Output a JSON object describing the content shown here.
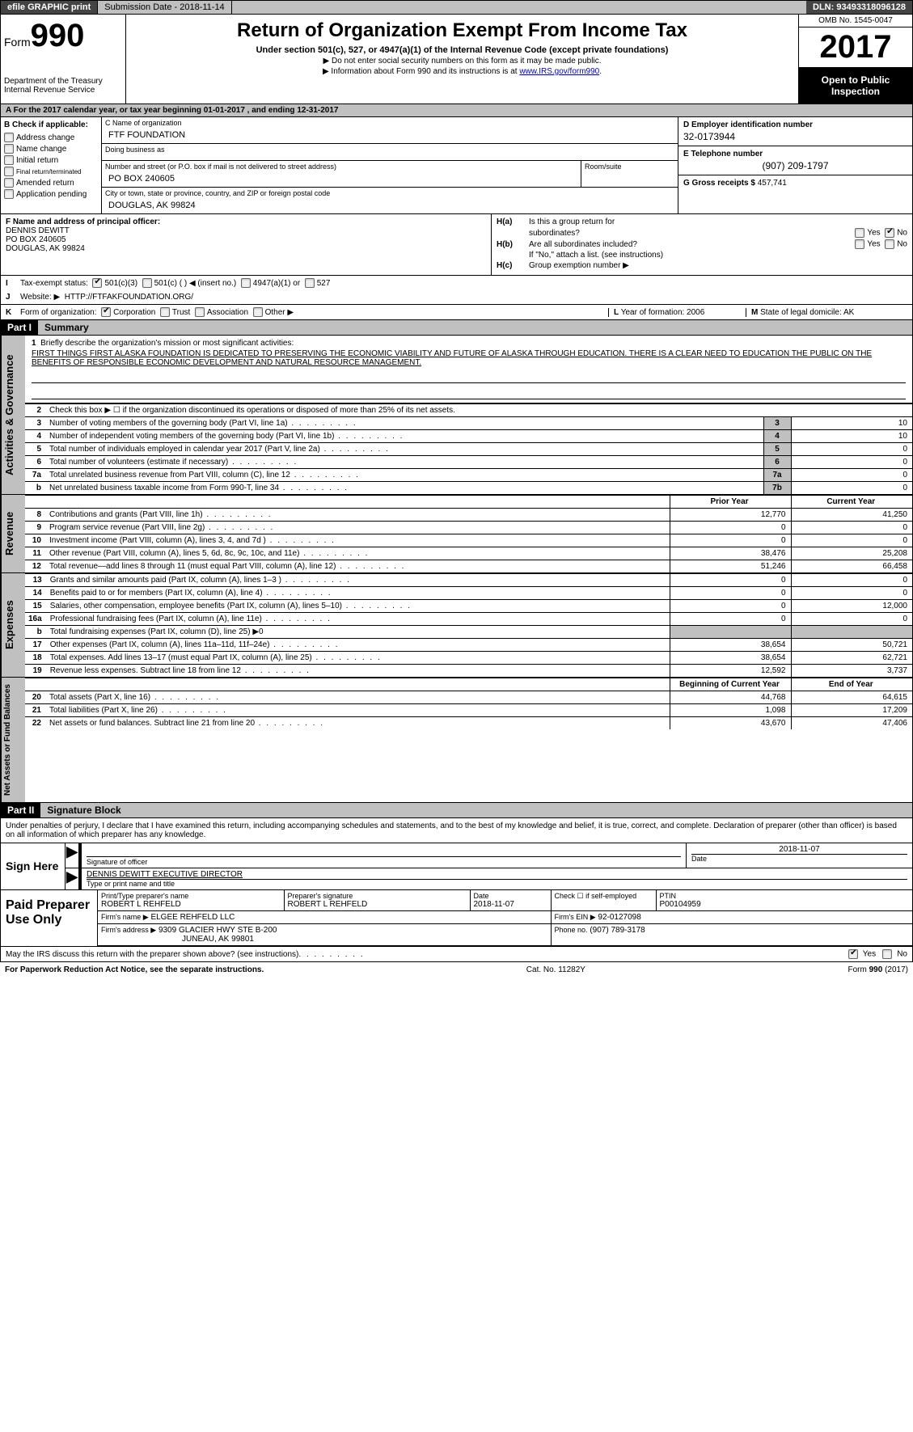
{
  "topbar": {
    "efile": "efile GRAPHIC print",
    "submission_label": "Submission Date - 2018-11-14",
    "dln": "DLN: 93493318096128"
  },
  "header": {
    "form_prefix": "Form",
    "form_number": "990",
    "dept1": "Department of the Treasury",
    "dept2": "Internal Revenue Service",
    "title": "Return of Organization Exempt From Income Tax",
    "subtitle": "Under section 501(c), 527, or 4947(a)(1) of the Internal Revenue Code (except private foundations)",
    "note1": "▶ Do not enter social security numbers on this form as it may be made public.",
    "note2_prefix": "▶ Information about Form 990 and its instructions is at ",
    "note2_link": "www.IRS.gov/form990",
    "omb": "OMB No. 1545-0047",
    "year": "2017",
    "open1": "Open to Public",
    "open2": "Inspection"
  },
  "period": "A  For the 2017 calendar year, or tax year beginning 01-01-2017        , and ending 12-31-2017",
  "section_b": {
    "heading": "B Check if applicable:",
    "items": [
      "Address change",
      "Name change",
      "Initial return",
      "Final return/terminated",
      "Amended return",
      "Application pending"
    ]
  },
  "section_c": {
    "name_label": "C Name of organization",
    "name": "FTF FOUNDATION",
    "dba_label": "Doing business as",
    "dba": "",
    "street_label": "Number and street (or P.O. box if mail is not delivered to street address)",
    "street": "PO BOX 240605",
    "room_label": "Room/suite",
    "city_label": "City or town, state or province, country, and ZIP or foreign postal code",
    "city": "DOUGLAS, AK  99824"
  },
  "section_d": {
    "label": "D Employer identification number",
    "val": "32-0173944"
  },
  "section_e": {
    "label": "E Telephone number",
    "val": "(907) 209-1797"
  },
  "section_g": {
    "label": "G Gross receipts $",
    "val": "457,741"
  },
  "section_f": {
    "label": "F Name and address of principal officer:",
    "line1": "DENNIS DEWITT",
    "line2": "PO BOX 240605",
    "line3": "DOUGLAS, AK  99824"
  },
  "section_h": {
    "ha_label": "H(a)",
    "ha_text": "Is this a group return for",
    "ha_text2": "subordinates?",
    "hb_label": "H(b)",
    "hb_text": "Are all subordinates included?",
    "hb_note": "If \"No,\" attach a list. (see instructions)",
    "hc_label": "H(c)",
    "hc_text": "Group exemption number ▶",
    "yes": "Yes",
    "no": "No"
  },
  "row_i": {
    "label": "I",
    "text": "Tax-exempt status:",
    "opts": [
      "501(c)(3)",
      "501(c) (  ) ◀ (insert no.)",
      "4947(a)(1) or",
      "527"
    ]
  },
  "row_j": {
    "label": "J",
    "text": "Website: ▶",
    "val": "HTTP://FTFAKFOUNDATION.ORG/"
  },
  "row_k": {
    "label": "K",
    "text": "Form of organization:",
    "opts": [
      "Corporation",
      "Trust",
      "Association",
      "Other ▶"
    ]
  },
  "row_lm": {
    "l_label": "L",
    "l_text": "Year of formation: 2006",
    "m_label": "M",
    "m_text": "State of legal domicile: AK"
  },
  "part1": {
    "label": "Part I",
    "title": "Summary"
  },
  "sidebars": {
    "s1": "Activities & Governance",
    "s2": "Revenue",
    "s3": "Expenses",
    "s4": "Net Assets or Fund Balances"
  },
  "mission": {
    "line1_label": "1",
    "line1_text": "Briefly describe the organization's mission or most significant activities:",
    "body": "FIRST THINGS FIRST ALASKA FOUNDATION IS DEDICATED TO PRESERVING THE ECONOMIC VIABILITY AND FUTURE OF ALASKA THROUGH EDUCATION. THERE IS A CLEAR NEED TO EDUCATION THE PUBLIC ON THE BENEFITS OF RESPONSIBLE ECONOMIC DEVELOPMENT AND NATURAL RESOURCE MANAGEMENT."
  },
  "lines_ag": [
    {
      "ln": "2",
      "desc": "Check this box ▶ ☐ if the organization discontinued its operations or disposed of more than 25% of its net assets.",
      "no_box": true
    },
    {
      "ln": "3",
      "desc": "Number of voting members of the governing body (Part VI, line 1a)",
      "box": "3",
      "val": "10"
    },
    {
      "ln": "4",
      "desc": "Number of independent voting members of the governing body (Part VI, line 1b)",
      "box": "4",
      "val": "10"
    },
    {
      "ln": "5",
      "desc": "Total number of individuals employed in calendar year 2017 (Part V, line 2a)",
      "box": "5",
      "val": "0"
    },
    {
      "ln": "6",
      "desc": "Total number of volunteers (estimate if necessary)",
      "box": "6",
      "val": "0"
    },
    {
      "ln": "7a",
      "desc": "Total unrelated business revenue from Part VIII, column (C), line 12",
      "box": "7a",
      "val": "0"
    },
    {
      "ln": "b",
      "desc": "Net unrelated business taxable income from Form 990-T, line 34",
      "box": "7b",
      "val": "0"
    }
  ],
  "col_headers": {
    "prior": "Prior Year",
    "current": "Current Year",
    "beg": "Beginning of Current Year",
    "end": "End of Year"
  },
  "lines_rev": [
    {
      "ln": "8",
      "desc": "Contributions and grants (Part VIII, line 1h)",
      "prior": "12,770",
      "cur": "41,250"
    },
    {
      "ln": "9",
      "desc": "Program service revenue (Part VIII, line 2g)",
      "prior": "0",
      "cur": "0"
    },
    {
      "ln": "10",
      "desc": "Investment income (Part VIII, column (A), lines 3, 4, and 7d )",
      "prior": "0",
      "cur": "0"
    },
    {
      "ln": "11",
      "desc": "Other revenue (Part VIII, column (A), lines 5, 6d, 8c, 9c, 10c, and 11e)",
      "prior": "38,476",
      "cur": "25,208"
    },
    {
      "ln": "12",
      "desc": "Total revenue—add lines 8 through 11 (must equal Part VIII, column (A), line 12)",
      "prior": "51,246",
      "cur": "66,458"
    }
  ],
  "lines_exp": [
    {
      "ln": "13",
      "desc": "Grants and similar amounts paid (Part IX, column (A), lines 1–3 )",
      "prior": "0",
      "cur": "0"
    },
    {
      "ln": "14",
      "desc": "Benefits paid to or for members (Part IX, column (A), line 4)",
      "prior": "0",
      "cur": "0"
    },
    {
      "ln": "15",
      "desc": "Salaries, other compensation, employee benefits (Part IX, column (A), lines 5–10)",
      "prior": "0",
      "cur": "12,000"
    },
    {
      "ln": "16a",
      "desc": "Professional fundraising fees (Part IX, column (A), line 11e)",
      "prior": "0",
      "cur": "0"
    },
    {
      "ln": "b",
      "desc": "Total fundraising expenses (Part IX, column (D), line 25) ▶0",
      "shaded": true
    },
    {
      "ln": "17",
      "desc": "Other expenses (Part IX, column (A), lines 11a–11d, 11f–24e)",
      "prior": "38,654",
      "cur": "50,721"
    },
    {
      "ln": "18",
      "desc": "Total expenses. Add lines 13–17 (must equal Part IX, column (A), line 25)",
      "prior": "38,654",
      "cur": "62,721"
    },
    {
      "ln": "19",
      "desc": "Revenue less expenses. Subtract line 18 from line 12",
      "prior": "12,592",
      "cur": "3,737"
    }
  ],
  "lines_net": [
    {
      "ln": "20",
      "desc": "Total assets (Part X, line 16)",
      "prior": "44,768",
      "cur": "64,615"
    },
    {
      "ln": "21",
      "desc": "Total liabilities (Part X, line 26)",
      "prior": "1,098",
      "cur": "17,209"
    },
    {
      "ln": "22",
      "desc": "Net assets or fund balances. Subtract line 21 from line 20",
      "prior": "43,670",
      "cur": "47,406"
    }
  ],
  "part2": {
    "label": "Part II",
    "title": "Signature Block"
  },
  "sig": {
    "intro": "Under penalties of perjury, I declare that I have examined this return, including accompanying schedules and statements, and to the best of my knowledge and belief, it is true, correct, and complete. Declaration of preparer (other than officer) is based on all information of which preparer has any knowledge.",
    "here": "Sign Here",
    "officer_sig_label": "Signature of officer",
    "date": "2018-11-07",
    "date_label": "Date",
    "officer_name": "DENNIS DEWITT  EXECUTIVE DIRECTOR",
    "officer_name_label": "Type or print name and title"
  },
  "prep": {
    "left": "Paid Preparer Use Only",
    "name_label": "Print/Type preparer's name",
    "name": "ROBERT L REHFELD",
    "sig_label": "Preparer's signature",
    "sig": "ROBERT L REHFELD",
    "date_label": "Date",
    "date": "2018-11-07",
    "check_label": "Check ☐ if self-employed",
    "ptin_label": "PTIN",
    "ptin": "P00104959",
    "firm_name_label": "Firm's name    ▶",
    "firm_name": "ELGEE REHFELD LLC",
    "firm_ein_label": "Firm's EIN ▶",
    "firm_ein": "92-0127098",
    "firm_addr_label": "Firm's address ▶",
    "firm_addr1": "9309 GLACIER HWY STE B-200",
    "firm_addr2": "JUNEAU, AK  99801",
    "phone_label": "Phone no.",
    "phone": "(907) 789-3178"
  },
  "footer": {
    "discuss": "May the IRS discuss this return with the preparer shown above? (see instructions)",
    "yes": "Yes",
    "no": "No",
    "paperwork": "For Paperwork Reduction Act Notice, see the separate instructions.",
    "cat": "Cat. No. 11282Y",
    "form": "Form 990 (2017)"
  }
}
